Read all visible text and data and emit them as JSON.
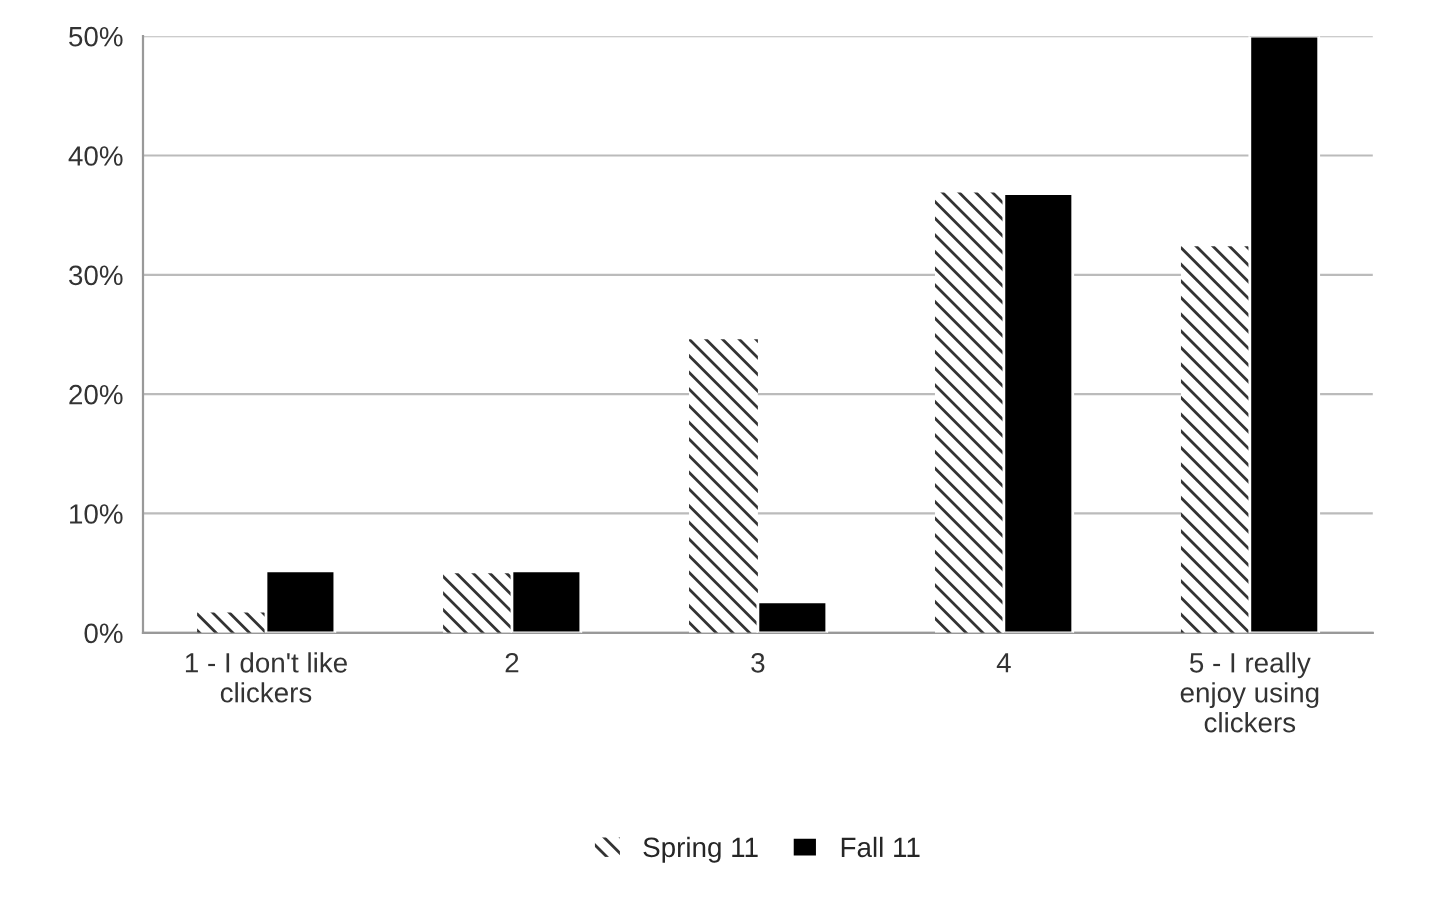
{
  "chart_data": {
    "type": "bar",
    "categories": [
      "1 - I don't like\nclickers",
      "2",
      "3",
      "4",
      "5 - I really\nenjoy using\nclickers"
    ],
    "series": [
      {
        "name": "Spring 11",
        "color": "#333333",
        "values": [
          1.7,
          5,
          24.6,
          36.9,
          32.4
        ]
      },
      {
        "name": "Fall 11",
        "color": "#000000",
        "values": [
          5.2,
          5.2,
          2.6,
          36.8,
          50
        ]
      }
    ],
    "ylim": [
      0,
      50
    ],
    "yticks": [
      {
        "value": 0,
        "label": "0%"
      },
      {
        "value": 10,
        "label": "10%"
      },
      {
        "value": 20,
        "label": "20%"
      },
      {
        "value": 30,
        "label": "30%"
      },
      {
        "value": 40,
        "label": "40%"
      },
      {
        "value": 50,
        "label": "50%"
      }
    ],
    "grid": "y",
    "legend": "bottom"
  }
}
